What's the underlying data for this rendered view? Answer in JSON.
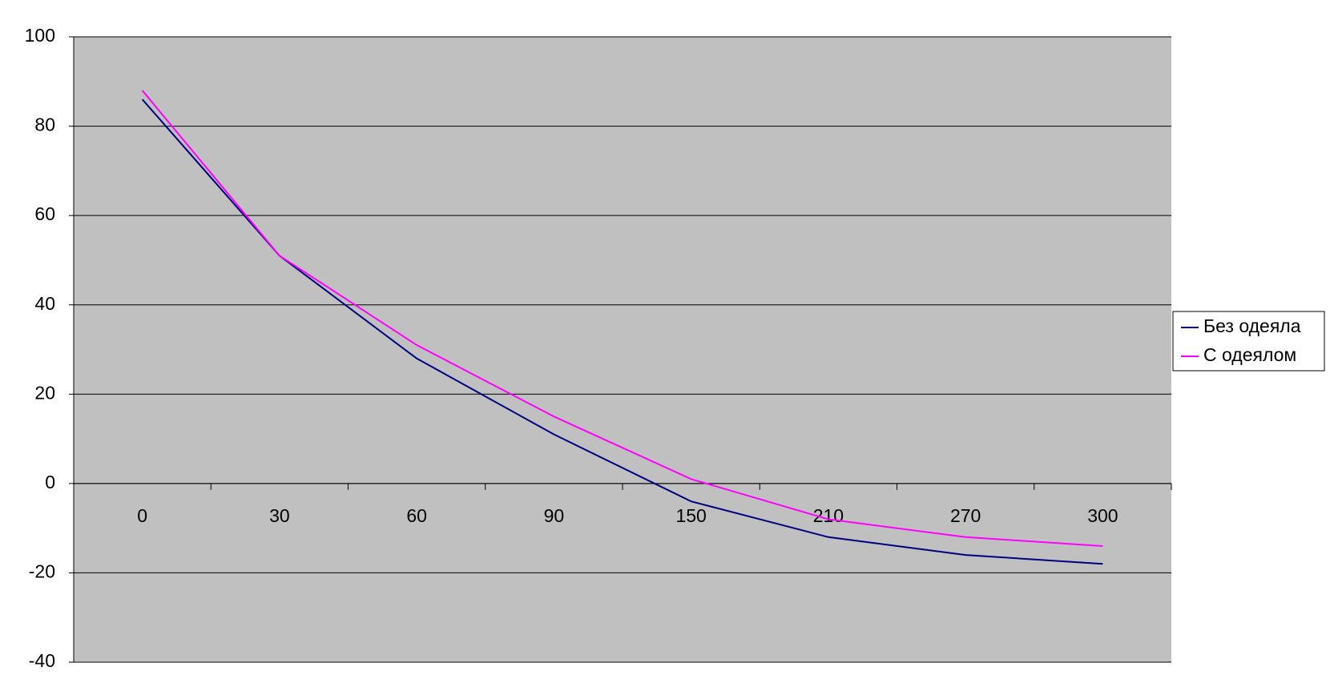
{
  "chart_data": {
    "type": "line",
    "categories": [
      "0",
      "30",
      "60",
      "90",
      "150",
      "210",
      "270",
      "300"
    ],
    "series": [
      {
        "name": "Без одеяла",
        "color": "#000080",
        "values": [
          86,
          51,
          28,
          11,
          -4,
          -12,
          -16,
          -18
        ]
      },
      {
        "name": "С одеялом",
        "color": "#ff00ff",
        "values": [
          88,
          51,
          31,
          15,
          1,
          -8,
          -12,
          -14
        ]
      }
    ],
    "ylim": [
      -40,
      100
    ],
    "yticks": [
      -40,
      -20,
      0,
      20,
      40,
      60,
      80,
      100
    ],
    "grid": true,
    "legend": "right"
  }
}
